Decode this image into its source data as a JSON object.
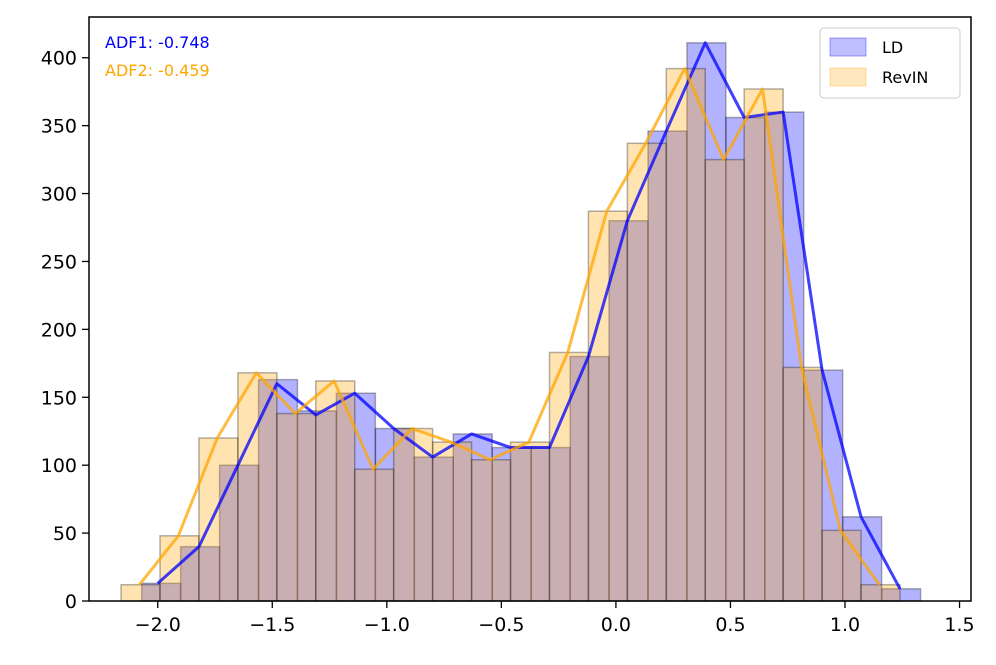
{
  "chart_data": {
    "type": "histogram",
    "xlim": [
      -2.3,
      1.55
    ],
    "ylim": [
      0,
      430
    ],
    "xticks": [
      -2.0,
      -1.5,
      -1.0,
      -0.5,
      0.0,
      0.5,
      1.0,
      1.5
    ],
    "xtick_labels": [
      "−2.0",
      "−1.5",
      "−1.0",
      "−0.5",
      "0.0",
      "0.5",
      "1.0",
      "1.5"
    ],
    "yticks": [
      0,
      50,
      100,
      150,
      200,
      250,
      300,
      350,
      400
    ],
    "ytick_labels": [
      "0",
      "50",
      "100",
      "150",
      "200",
      "250",
      "300",
      "350",
      "400"
    ],
    "grid": false,
    "legend_position": "top-right",
    "annotations": [
      {
        "text": "ADF1: -0.748",
        "color": "#0000ff"
      },
      {
        "text": "ADF2: -0.459",
        "color": "#ffa500"
      }
    ],
    "series": [
      {
        "name": "LD",
        "fill_color": "#0000ff",
        "line_color": "#0000ff",
        "bin_edges": [
          -2.07,
          -1.9,
          -1.73,
          -1.56,
          -1.39,
          -1.22,
          -1.05,
          -0.88,
          -0.71,
          -0.54,
          -0.37,
          -0.2,
          -0.03,
          0.14,
          0.31,
          0.48,
          0.65,
          0.82,
          0.99,
          1.16,
          1.33
        ],
        "counts": [
          13,
          40,
          100,
          163,
          140,
          153,
          127,
          106,
          123,
          113,
          113,
          180,
          280,
          346,
          411,
          356,
          360,
          170,
          62,
          9
        ],
        "line_x": [
          -2.0,
          -1.82,
          -1.65,
          -1.48,
          -1.31,
          -1.14,
          -0.97,
          -0.8,
          -0.63,
          -0.46,
          -0.29,
          -0.12,
          0.05,
          0.22,
          0.39,
          0.56,
          0.73,
          0.9,
          1.07,
          1.24
        ],
        "line_y": [
          13,
          40,
          100,
          160,
          137,
          153,
          127,
          106,
          123,
          113,
          113,
          180,
          280,
          346,
          411,
          356,
          360,
          170,
          62,
          9
        ]
      },
      {
        "name": "RevIN",
        "fill_color": "#ffa500",
        "line_color": "#ffa500",
        "bin_edges": [
          -2.16,
          -1.99,
          -1.82,
          -1.65,
          -1.48,
          -1.31,
          -1.14,
          -0.97,
          -0.8,
          -0.63,
          -0.46,
          -0.29,
          -0.12,
          0.05,
          0.22,
          0.39,
          0.56,
          0.73,
          0.9,
          1.07,
          1.24
        ],
        "counts": [
          12,
          48,
          120,
          168,
          138,
          162,
          97,
          127,
          117,
          104,
          117,
          183,
          287,
          337,
          392,
          325,
          377,
          172,
          52,
          12
        ],
        "line_x": [
          -2.08,
          -1.91,
          -1.74,
          -1.57,
          -1.4,
          -1.23,
          -1.06,
          -0.89,
          -0.72,
          -0.55,
          -0.38,
          -0.21,
          -0.04,
          0.13,
          0.3,
          0.47,
          0.64,
          0.81,
          0.98,
          1.15
        ],
        "line_y": [
          12,
          48,
          120,
          168,
          138,
          162,
          97,
          127,
          117,
          104,
          117,
          183,
          287,
          337,
          392,
          325,
          377,
          172,
          52,
          12
        ]
      }
    ]
  }
}
